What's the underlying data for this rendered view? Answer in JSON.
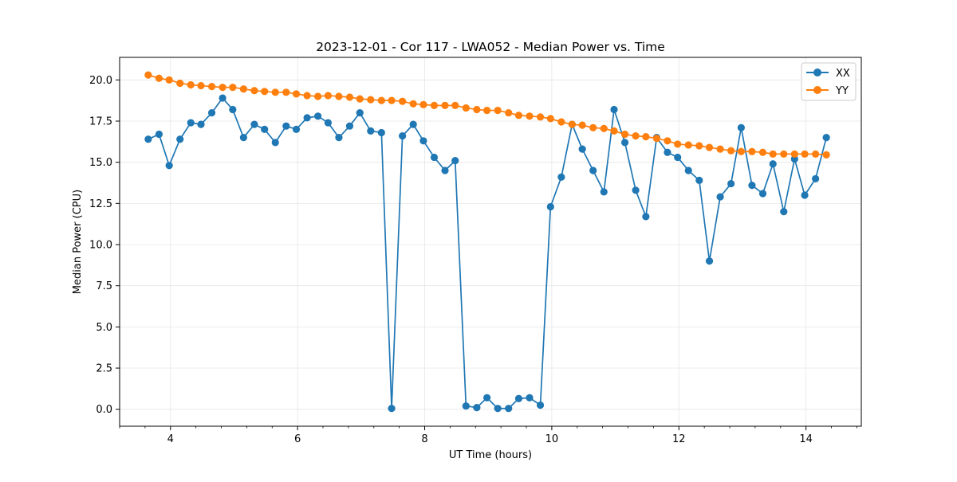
{
  "chart_data": {
    "type": "line",
    "title": "2023-12-01 - Cor 117 - LWA052 - Median Power vs. Time",
    "xlabel": "UT Time (hours)",
    "ylabel": "Median Power (CPU)",
    "xlim": [
      3.2,
      14.87
    ],
    "ylim": [
      -1.03,
      21.37
    ],
    "xticks": [
      4,
      6,
      8,
      10,
      12,
      14
    ],
    "xtick_labels": [
      "4",
      "6",
      "8",
      "10",
      "12",
      "14"
    ],
    "yticks": [
      0.0,
      2.5,
      5.0,
      7.5,
      10.0,
      12.5,
      15.0,
      17.5,
      20.0
    ],
    "ytick_labels": [
      "0.0",
      "2.5",
      "5.0",
      "7.5",
      "10.0",
      "12.5",
      "15.0",
      "17.5",
      "20.0"
    ],
    "grid": true,
    "legend_position": "top-right",
    "x": [
      3.65,
      3.82,
      3.98,
      4.15,
      4.32,
      4.48,
      4.65,
      4.82,
      4.98,
      5.15,
      5.32,
      5.48,
      5.65,
      5.82,
      5.98,
      6.15,
      6.32,
      6.48,
      6.65,
      6.82,
      6.98,
      7.15,
      7.32,
      7.48,
      7.65,
      7.82,
      7.98,
      8.15,
      8.32,
      8.48,
      8.65,
      8.82,
      8.98,
      9.15,
      9.32,
      9.48,
      9.65,
      9.82,
      9.98,
      10.15,
      10.32,
      10.48,
      10.65,
      10.82,
      10.98,
      11.15,
      11.32,
      11.48,
      11.65,
      11.82,
      11.98,
      12.15,
      12.32,
      12.48,
      12.65,
      12.82,
      12.98,
      13.15,
      13.32,
      13.48,
      13.65,
      13.82,
      13.98,
      14.15,
      14.32
    ],
    "series": [
      {
        "name": "XX",
        "color": "#1f77b4",
        "values": [
          16.4,
          16.7,
          14.8,
          16.4,
          17.4,
          17.3,
          18.0,
          18.9,
          18.2,
          16.5,
          17.3,
          17.0,
          16.2,
          17.2,
          17.0,
          17.7,
          17.8,
          17.4,
          16.5,
          17.2,
          18.0,
          16.9,
          16.8,
          0.05,
          16.6,
          17.3,
          16.3,
          15.3,
          14.5,
          15.1,
          0.2,
          0.1,
          0.7,
          0.05,
          0.05,
          0.65,
          0.7,
          0.25,
          12.3,
          14.1,
          17.3,
          15.8,
          14.5,
          13.2,
          18.2,
          16.2,
          13.3,
          11.7,
          16.5,
          15.6,
          15.3,
          14.5,
          13.9,
          9.0,
          12.9,
          13.7,
          17.1,
          13.6,
          13.1,
          14.9,
          12.0,
          15.2,
          13.0,
          14.0,
          16.5
        ]
      },
      {
        "name": "YY",
        "color": "#ff7f0e",
        "values": [
          20.3,
          20.1,
          20.0,
          19.8,
          19.7,
          19.65,
          19.6,
          19.55,
          19.55,
          19.45,
          19.35,
          19.3,
          19.25,
          19.25,
          19.15,
          19.05,
          19.0,
          19.05,
          19.0,
          18.95,
          18.85,
          18.8,
          18.75,
          18.75,
          18.7,
          18.55,
          18.5,
          18.45,
          18.45,
          18.45,
          18.3,
          18.2,
          18.15,
          18.15,
          18.0,
          17.85,
          17.8,
          17.75,
          17.65,
          17.45,
          17.3,
          17.25,
          17.1,
          17.05,
          16.9,
          16.7,
          16.6,
          16.55,
          16.45,
          16.3,
          16.1,
          16.05,
          16.0,
          15.9,
          15.8,
          15.7,
          15.65,
          15.65,
          15.6,
          15.5,
          15.5,
          15.5,
          15.5,
          15.5,
          15.45
        ]
      }
    ]
  }
}
